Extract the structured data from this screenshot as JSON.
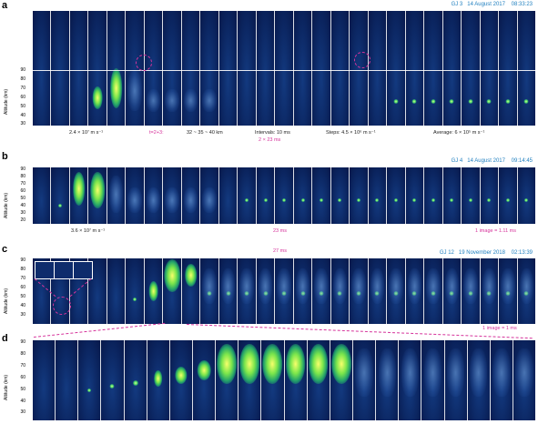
{
  "panels": {
    "a": {
      "label": "a",
      "header": [
        "GJ 3",
        "14 August 2017",
        "08:33:23"
      ],
      "axis_title": "Altitude (km)",
      "ticks": [
        "90",
        "80",
        "70",
        "60",
        "50",
        "40",
        "30"
      ],
      "annotations": [
        {
          "text": "2.4 × 10⁷ m s⁻¹",
          "color": "#222"
        },
        {
          "text": "t=2+3:",
          "color": "#d6339b"
        },
        {
          "text": "32 ~ 35 ~ 40 km",
          "color": "#222"
        },
        {
          "text": "Intervals: 10 ms",
          "color": "#222"
        },
        {
          "text": "2 × 23 ms",
          "color": "#d6339b"
        },
        {
          "text": "Steps: 4.5 × 10⁶ m s⁻¹",
          "color": "#222"
        },
        {
          "text": "Average: 6 × 10⁵ m s⁻¹",
          "color": "#222"
        }
      ],
      "markers": [
        "1",
        "2",
        "3",
        "4",
        "5",
        "6",
        "7",
        "8"
      ]
    },
    "b": {
      "label": "b",
      "header": [
        "GJ 4",
        "14 August 2017",
        "09:14:45"
      ],
      "axis_title": "Altitude (km)",
      "ticks": [
        "90",
        "80",
        "70",
        "60",
        "50",
        "40",
        "30",
        "20"
      ],
      "annotations": [
        {
          "text": "3.6 × 10⁷ m s⁻¹",
          "color": "#222"
        },
        {
          "text": "23 ms",
          "color": "#d6339b"
        },
        {
          "text": "1 image = 1.11 ms",
          "color": "#d6339b"
        }
      ],
      "markers": [
        "1",
        "2",
        "3",
        "4",
        "5"
      ]
    },
    "c": {
      "label": "c",
      "header": [
        "GJ 12",
        "19 November 2018",
        "02:13:39"
      ],
      "top_note": "27 ms",
      "axis_title": "Altitude (km)",
      "ticks": [
        "90",
        "80",
        "70",
        "60",
        "50",
        "40",
        "30"
      ],
      "annotations": [
        {
          "text": "1 image = 1 ms",
          "color": "#d6339b"
        }
      ],
      "markers": [
        "1",
        "2",
        "3",
        "4",
        "5"
      ]
    },
    "d": {
      "label": "d",
      "axis_title": "Altitude (km)",
      "ticks": [
        "90",
        "80",
        "70",
        "60",
        "50",
        "40",
        "30"
      ],
      "markers": [
        "2"
      ]
    }
  }
}
